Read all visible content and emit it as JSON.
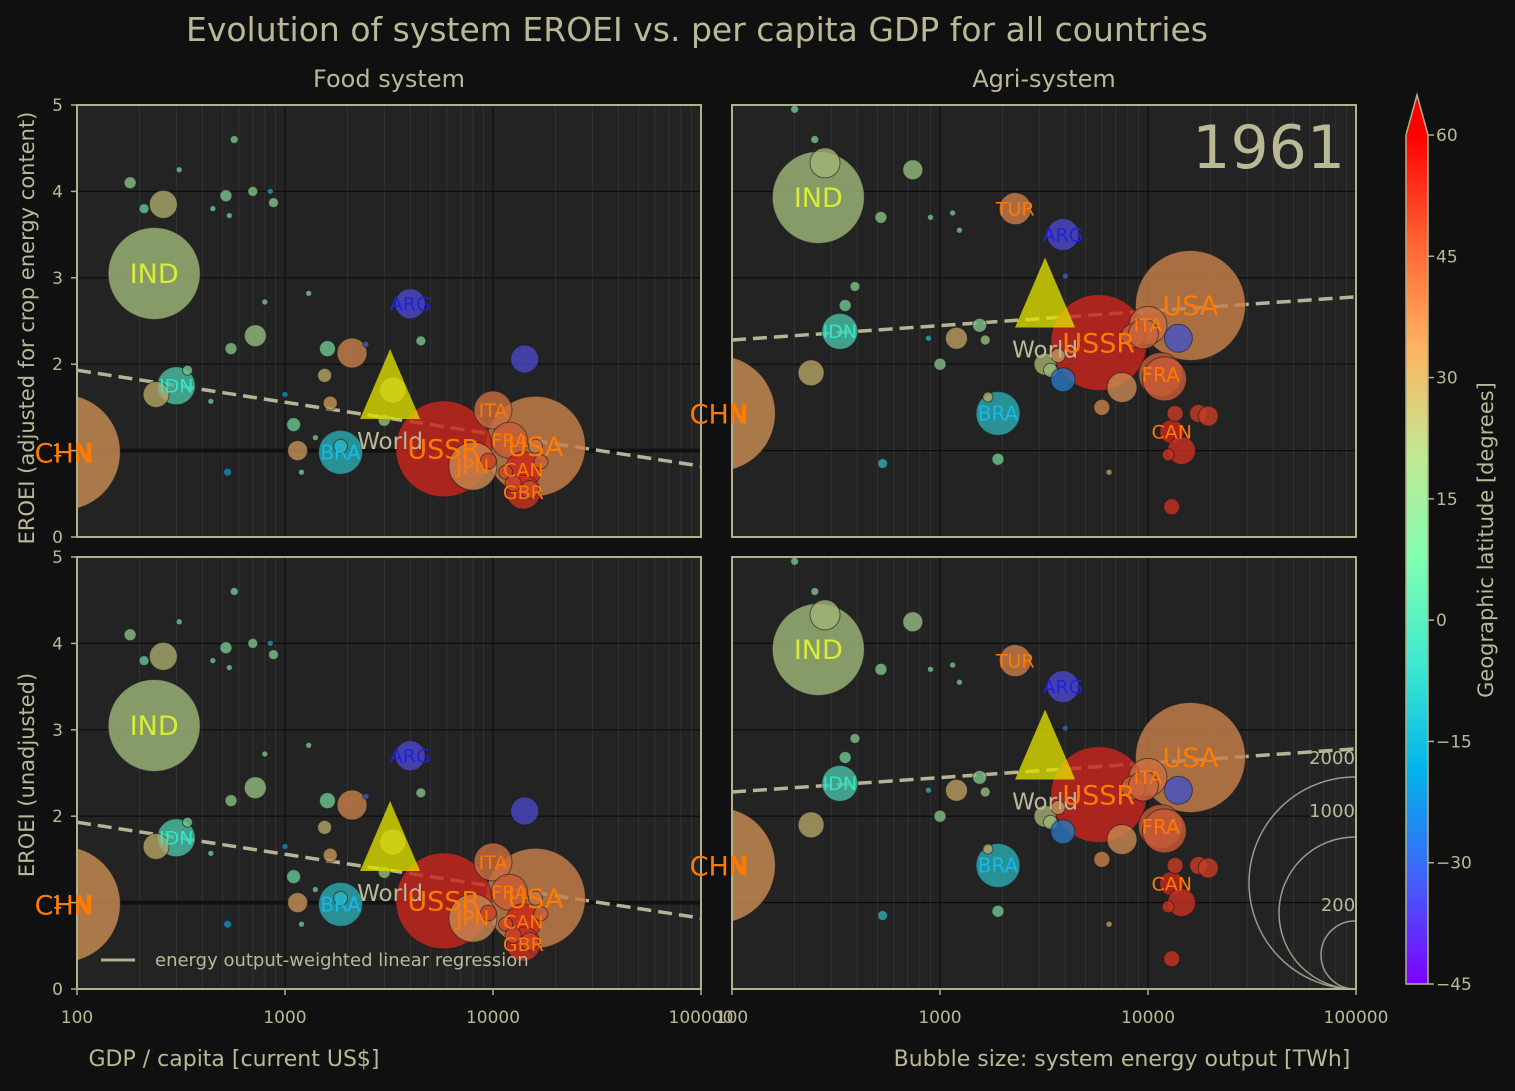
{
  "title": "Evolution of system EROEI vs. per capita GDP for all countries",
  "year": "1961",
  "col_titles": [
    "Food system",
    "Agri-system"
  ],
  "ylabels": [
    "EROEI (adjusted for crop energy content)",
    "EROEI (unadjusted)"
  ],
  "xlabel": "GDP / capita [current US$]",
  "bubble_label": "Bubble size: system energy output [TWh]",
  "legend_label": "energy output-weighted linear regression",
  "colorbar": {
    "label": "Geographic latitude [degrees]",
    "min": -45,
    "max": 60,
    "ticks": [
      "60",
      "45",
      "30",
      "15",
      "0",
      "−15",
      "−30",
      "−45"
    ]
  },
  "size_legend": [
    "2000",
    "1000",
    "200"
  ],
  "colors": {
    "background": "#101010",
    "panel": "#232323",
    "frame": "#b1b18d",
    "text": "#b9b997"
  },
  "chart_data": {
    "type": "scatter",
    "x_scale": "log",
    "xlim": [
      100,
      100000
    ],
    "ylim": [
      0,
      5
    ],
    "x_ticks": [
      "100",
      "1000",
      "10000",
      "100000"
    ],
    "y_ticks": [
      "0",
      "1",
      "2",
      "3",
      "4",
      "5"
    ],
    "food_reference_line": 1,
    "regression": {
      "food": {
        "x": [
          100,
          100000
        ],
        "y": [
          1.93,
          0.82
        ]
      },
      "agri": {
        "x": [
          100,
          100000
        ],
        "y": [
          2.28,
          2.78
        ]
      }
    },
    "world": {
      "label": "World",
      "gdp": 3200,
      "food": 1.62,
      "agri": 2.68
    },
    "food_countries": [
      {
        "code": "CHN",
        "gdp": 85,
        "y": 0.98,
        "r": 58,
        "lat": 35
      },
      {
        "code": "IND",
        "gdp": 235,
        "y": 3.05,
        "r": 46,
        "lat": 21
      },
      {
        "code": "IDN",
        "gdp": 300,
        "y": 1.75,
        "r": 19,
        "lat": -2
      },
      {
        "code": "ARG",
        "gdp": 4000,
        "y": 2.7,
        "r": 15,
        "lat": -35
      },
      {
        "code": "BRA",
        "gdp": 1850,
        "y": 0.98,
        "r": 22,
        "lat": -11
      },
      {
        "code": "USSR",
        "gdp": 5800,
        "y": 1.02,
        "r": 48,
        "lat": 56
      },
      {
        "code": "ITA",
        "gdp": 10000,
        "y": 1.47,
        "r": 19,
        "lat": 42
      },
      {
        "code": "JPN",
        "gdp": 8000,
        "y": 0.82,
        "r": 24,
        "lat": 36
      },
      {
        "code": "FRA",
        "gdp": 12000,
        "y": 1.12,
        "r": 18,
        "lat": 46
      },
      {
        "code": "USA",
        "gdp": 16000,
        "y": 1.05,
        "r": 50,
        "lat": 38
      },
      {
        "code": "CAN",
        "gdp": 14000,
        "y": 0.78,
        "r": 18,
        "lat": 56
      },
      {
        "code": "GBR",
        "gdp": 14000,
        "y": 0.52,
        "r": 17,
        "lat": 54
      }
    ],
    "agri_countries": [
      {
        "code": "CHN",
        "gdp": 85,
        "y": 1.43,
        "r": 58,
        "lat": 35
      },
      {
        "code": "IND",
        "gdp": 260,
        "y": 3.93,
        "r": 46,
        "lat": 21
      },
      {
        "code": "TUR",
        "gdp": 2300,
        "y": 3.8,
        "r": 16,
        "lat": 39
      },
      {
        "code": "ARG",
        "gdp": 3900,
        "y": 3.5,
        "r": 16,
        "lat": -35
      },
      {
        "code": "IDN",
        "gdp": 330,
        "y": 2.38,
        "r": 18,
        "lat": -2
      },
      {
        "code": "BRA",
        "gdp": 1900,
        "y": 1.43,
        "r": 22,
        "lat": -11
      },
      {
        "code": "USSR",
        "gdp": 5800,
        "y": 2.25,
        "r": 48,
        "lat": 56
      },
      {
        "code": "ITA",
        "gdp": 10000,
        "y": 2.45,
        "r": 19,
        "lat": 42
      },
      {
        "code": "USA",
        "gdp": 16000,
        "y": 2.68,
        "r": 55,
        "lat": 38
      },
      {
        "code": "FRA",
        "gdp": 11500,
        "y": 1.88,
        "r": 22,
        "lat": 46
      },
      {
        "code": "CAN",
        "gdp": 13000,
        "y": 1.22,
        "r": 12,
        "lat": 56
      }
    ],
    "food_small": [
      [
        180,
        4.1,
        6,
        15
      ],
      [
        210,
        3.8,
        5,
        5
      ],
      [
        260,
        3.85,
        14,
        25
      ],
      [
        310,
        4.25,
        3,
        8
      ],
      [
        450,
        3.8,
        3,
        5
      ],
      [
        520,
        3.95,
        6,
        10
      ],
      [
        540,
        3.72,
        3,
        6
      ],
      [
        570,
        4.6,
        4,
        10
      ],
      [
        700,
        4.0,
        5,
        12
      ],
      [
        850,
        4.0,
        3,
        -15
      ],
      [
        880,
        3.87,
        5,
        12
      ],
      [
        240,
        1.65,
        13,
        28
      ],
      [
        340,
        1.93,
        5,
        8
      ],
      [
        550,
        2.18,
        6,
        14
      ],
      [
        720,
        2.33,
        11,
        18
      ],
      [
        800,
        2.72,
        3,
        12
      ],
      [
        1300,
        2.82,
        3,
        12
      ],
      [
        1100,
        1.3,
        7,
        6
      ],
      [
        1150,
        1.0,
        10,
        33
      ],
      [
        1000,
        1.65,
        3,
        -20
      ],
      [
        1600,
        2.18,
        8,
        8
      ],
      [
        1550,
        1.87,
        7,
        28
      ],
      [
        1650,
        1.55,
        7,
        33
      ],
      [
        1850,
        1.05,
        7,
        -8
      ],
      [
        2100,
        2.13,
        15,
        38
      ],
      [
        2450,
        2.23,
        3,
        -30
      ],
      [
        3300,
        1.7,
        13,
        24
      ],
      [
        3000,
        1.35,
        6,
        18
      ],
      [
        4500,
        2.27,
        5,
        12
      ],
      [
        14200,
        2.06,
        14,
        -35
      ],
      [
        9500,
        0.88,
        8,
        52
      ],
      [
        11500,
        0.75,
        7,
        50
      ],
      [
        12500,
        0.62,
        8,
        50
      ],
      [
        15000,
        0.55,
        9,
        50
      ],
      [
        17000,
        0.87,
        7,
        45
      ],
      [
        16000,
        1.05,
        7,
        40
      ],
      [
        530,
        0.75,
        4,
        -20
      ],
      [
        1200,
        0.75,
        3,
        10
      ],
      [
        1400,
        1.15,
        3,
        10
      ],
      [
        440,
        1.57,
        3,
        8
      ]
    ],
    "agri_small": [
      [
        200,
        4.95,
        4,
        8
      ],
      [
        250,
        4.6,
        4,
        12
      ],
      [
        280,
        4.33,
        15,
        22
      ],
      [
        520,
        3.7,
        6,
        14
      ],
      [
        740,
        4.25,
        10,
        18
      ],
      [
        900,
        3.7,
        3,
        10
      ],
      [
        1150,
        3.75,
        3,
        12
      ],
      [
        1240,
        3.55,
        3,
        10
      ],
      [
        240,
        1.9,
        13,
        28
      ],
      [
        350,
        2.68,
        6,
        8
      ],
      [
        390,
        2.9,
        5,
        12
      ],
      [
        1000,
        2.0,
        6,
        14
      ],
      [
        1200,
        2.3,
        11,
        30
      ],
      [
        1550,
        2.45,
        7,
        12
      ],
      [
        1650,
        2.28,
        5,
        18
      ],
      [
        1900,
        0.9,
        6,
        8
      ],
      [
        1700,
        1.62,
        5,
        28
      ],
      [
        3200,
        2.0,
        11,
        24
      ],
      [
        3400,
        1.93,
        7,
        20
      ],
      [
        3700,
        2.1,
        7,
        32
      ],
      [
        3900,
        1.82,
        12,
        -25
      ],
      [
        6000,
        1.5,
        8,
        38
      ],
      [
        7500,
        1.73,
        15,
        36
      ],
      [
        8500,
        2.33,
        12,
        44
      ],
      [
        9500,
        2.35,
        15,
        44
      ],
      [
        12000,
        1.83,
        22,
        46
      ],
      [
        14000,
        2.3,
        14,
        -33
      ],
      [
        17500,
        1.43,
        9,
        52
      ],
      [
        19500,
        1.4,
        10,
        52
      ],
      [
        13500,
        1.43,
        8,
        52
      ],
      [
        14500,
        1.0,
        14,
        54
      ],
      [
        12500,
        0.95,
        6,
        54
      ],
      [
        13000,
        0.35,
        8,
        54
      ],
      [
        530,
        0.85,
        5,
        -10
      ],
      [
        880,
        2.3,
        3,
        -10
      ],
      [
        4000,
        3.02,
        3,
        -30
      ],
      [
        6500,
        0.75,
        3,
        30
      ]
    ]
  }
}
